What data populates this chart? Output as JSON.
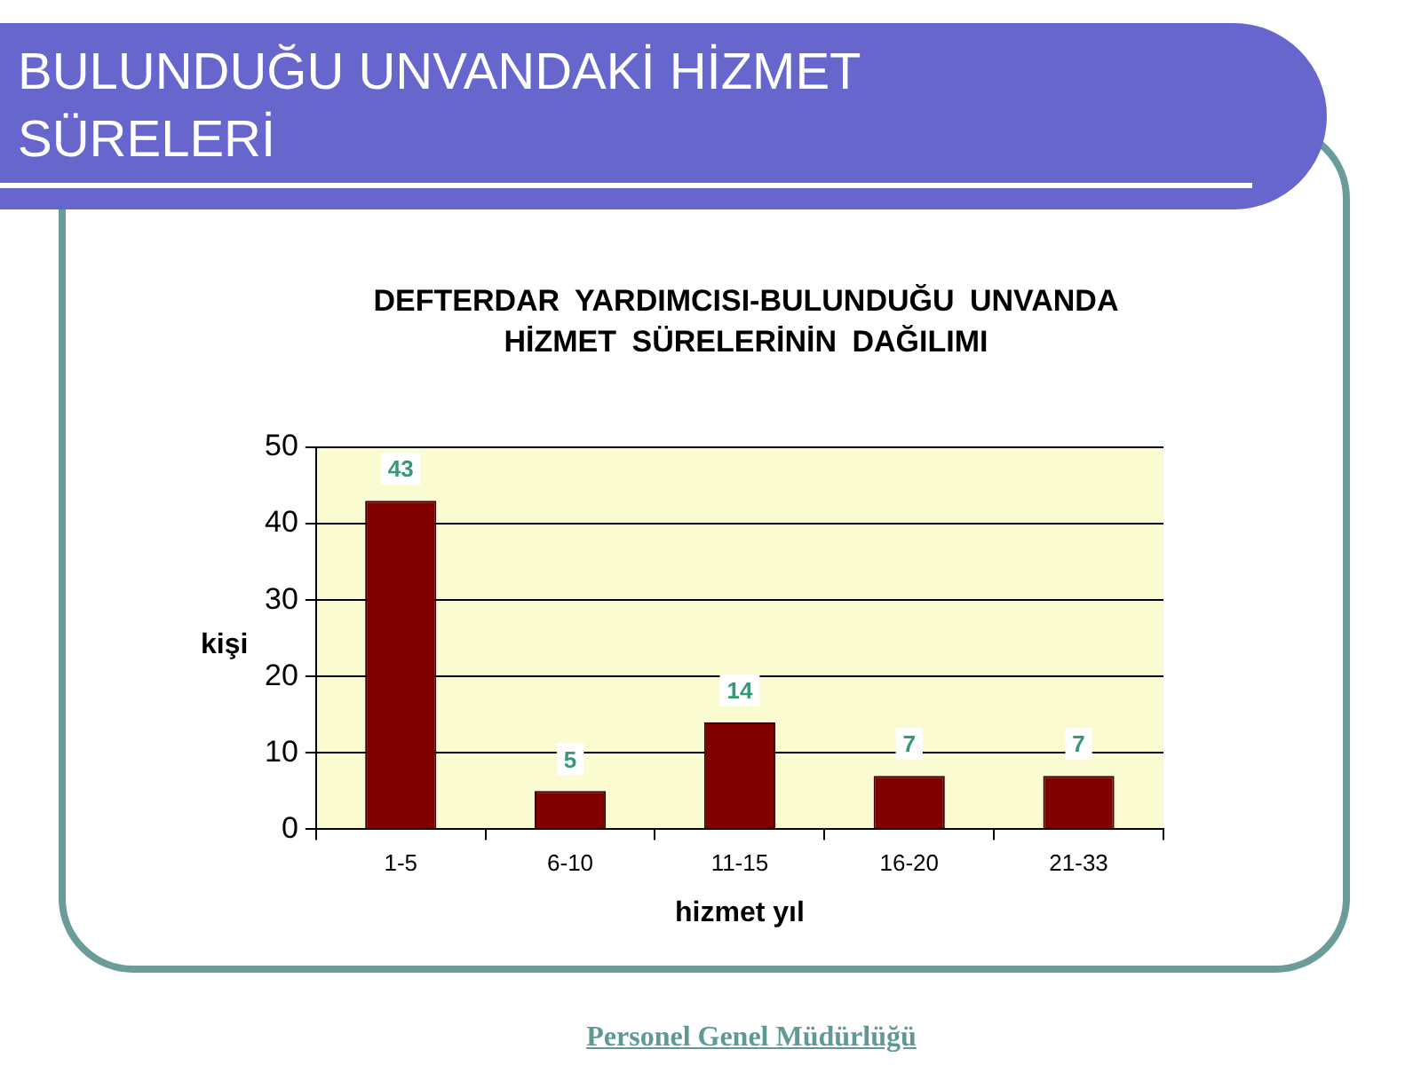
{
  "chart_data": {
    "type": "bar",
    "title": "BULUNDUĞU UNVANDAKİ HİZMET SÜRELERİ",
    "subtitle": "DEFTERDAR YARDIMCISI-BULUNDUĞU UNVANDA HİZMET SÜRELERİNİN DAĞILIMI",
    "xlabel": "hizmet yıl",
    "ylabel": "kişi",
    "categories": [
      "1-5",
      "6-10",
      "11-15",
      "16-20",
      "21-33"
    ],
    "values": [
      43,
      5,
      14,
      7,
      7
    ],
    "color": "#800000",
    "ylim": [
      0,
      50
    ],
    "yticks": [
      0,
      10,
      20,
      30,
      40,
      50
    ],
    "grid": "y",
    "data_labels": true,
    "annotations": [
      "Personel Genel Müdürlüğü"
    ]
  }
}
